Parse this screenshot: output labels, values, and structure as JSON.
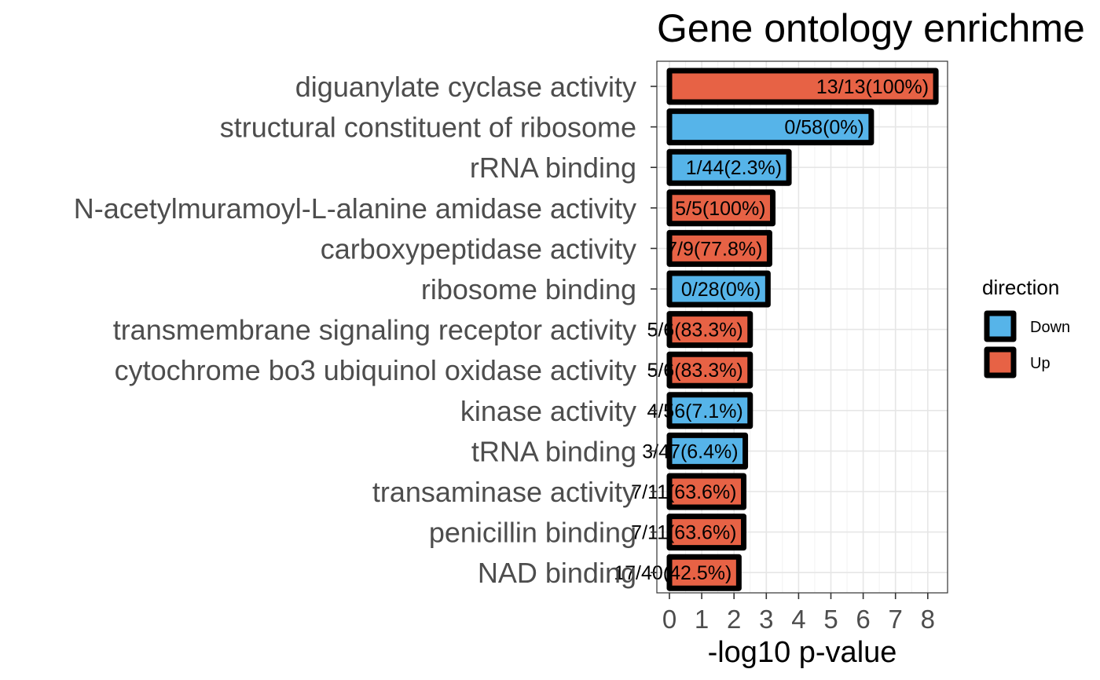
{
  "chart_data": {
    "type": "bar",
    "orientation": "horizontal",
    "title": "Gene ontology enrichme",
    "xlabel": "-log10 p-value",
    "ylabel": "",
    "xlim": [
      0,
      8.5
    ],
    "xticks": [
      0,
      1,
      2,
      3,
      4,
      5,
      6,
      7,
      8
    ],
    "grid": true,
    "legend": {
      "title": "direction",
      "position": "right",
      "entries": [
        {
          "name": "Down",
          "color": "#56B4E9"
        },
        {
          "name": "Up",
          "color": "#E76245"
        }
      ]
    },
    "categories": [
      "diguanylate cyclase activity",
      "structural constituent of ribosome",
      "rRNA binding",
      "N-acetylmuramoyl-L-alanine amidase activity",
      "carboxypeptidase activity",
      "ribosome binding",
      "transmembrane signaling receptor activity",
      "cytochrome bo3 ubiquinol oxidase activity",
      "kinase activity",
      "tRNA binding",
      "transaminase activity",
      "penicillin binding",
      "NAD binding"
    ],
    "values": [
      8.25,
      6.25,
      3.7,
      3.2,
      3.1,
      3.05,
      2.5,
      2.5,
      2.5,
      2.35,
      2.3,
      2.3,
      2.15
    ],
    "directions": [
      "Up",
      "Down",
      "Down",
      "Up",
      "Up",
      "Down",
      "Up",
      "Up",
      "Down",
      "Down",
      "Up",
      "Up",
      "Up"
    ],
    "bar_labels": [
      "13/13(100%)",
      "0/58(0%)",
      "1/44(2.3%)",
      "5/5(100%)",
      "7/9(77.8%)",
      "0/28(0%)",
      "5/6(83.3%)",
      "5/6(83.3%)",
      "4/56(7.1%)",
      "3/47(6.4%)",
      "7/11(63.6%)",
      "7/11(63.6%)",
      "17/40(42.5%)"
    ]
  }
}
